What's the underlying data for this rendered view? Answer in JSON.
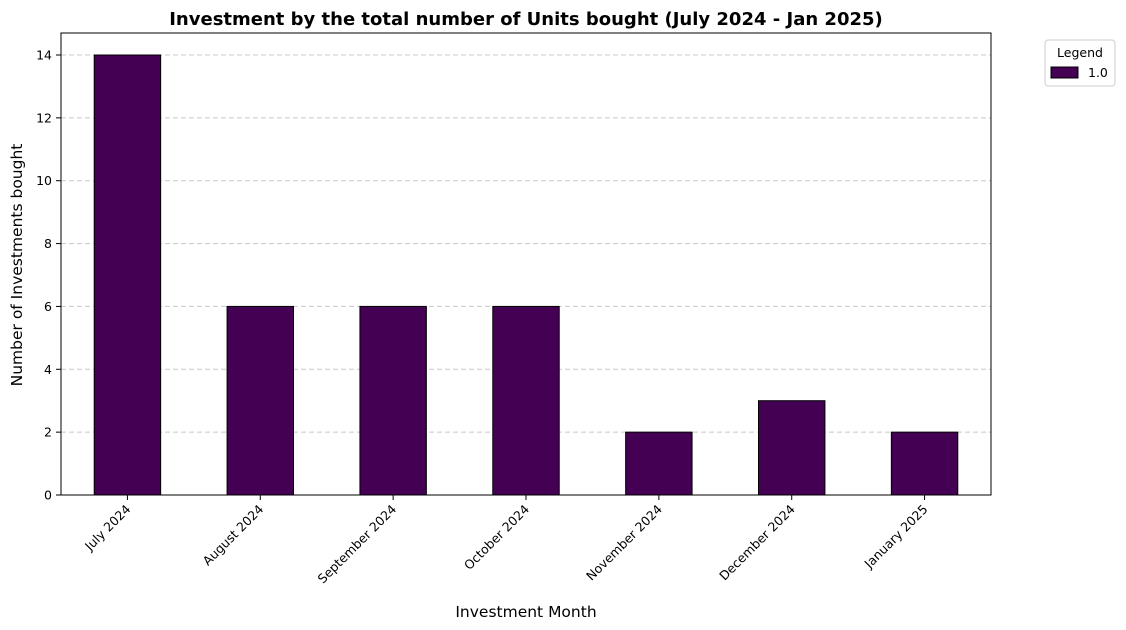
{
  "chart_data": {
    "type": "bar",
    "title": "Investment by the total number of Units bought (July 2024 - Jan 2025)",
    "xlabel": "Investment Month",
    "ylabel": "Number of Investments bought",
    "categories": [
      "July 2024",
      "August 2024",
      "September 2024",
      "October 2024",
      "November 2024",
      "December 2024",
      "January 2025"
    ],
    "series": [
      {
        "name": "1.0",
        "values": [
          14,
          6,
          6,
          6,
          2,
          3,
          2
        ]
      }
    ],
    "ylim": [
      0,
      14.7
    ],
    "yticks": [
      0,
      2,
      4,
      6,
      8,
      10,
      12,
      14
    ],
    "grid": "y-dashed",
    "legend": {
      "title": "Legend",
      "placement": "outside-top-right"
    },
    "colors": {
      "bar": "#440154",
      "edge": "#000000",
      "grid": "#c8c8c8"
    }
  }
}
